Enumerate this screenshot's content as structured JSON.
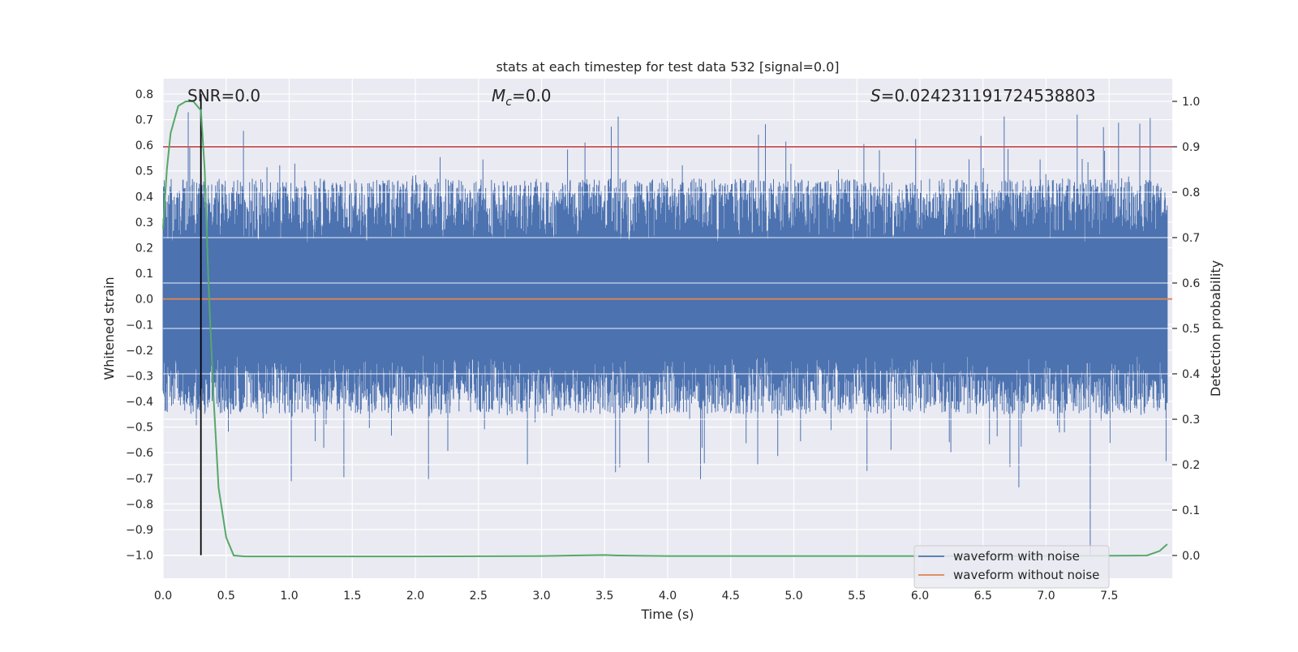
{
  "chart_data": {
    "type": "line",
    "title": "stats at each timestep for test data 532 [signal=0.0]",
    "xlabel": "Time (s)",
    "ylabel": "Whitened strain",
    "y2label": "Detection probability",
    "xlim": [
      0.0,
      8.0
    ],
    "ylim": [
      -1.09,
      0.86
    ],
    "y2lim": [
      -0.05,
      1.05
    ],
    "x_ticks": [
      0.0,
      0.5,
      1.0,
      1.5,
      2.0,
      2.5,
      3.0,
      3.5,
      4.0,
      4.5,
      5.0,
      5.5,
      6.0,
      6.5,
      7.0,
      7.5
    ],
    "x_tick_labels": [
      "0.0",
      "0.5",
      "1.0",
      "1.5",
      "2.0",
      "2.5",
      "3.0",
      "3.5",
      "4.0",
      "4.5",
      "5.0",
      "5.5",
      "6.0",
      "6.5",
      "7.0",
      "7.5"
    ],
    "y_ticks": [
      0.8,
      0.7,
      0.6,
      0.5,
      0.4,
      0.3,
      0.2,
      0.1,
      0.0,
      -0.1,
      -0.2,
      -0.3,
      -0.4,
      -0.5,
      -0.6,
      -0.7,
      -0.8,
      -0.9,
      -1.0
    ],
    "y_tick_labels": [
      "0.8",
      "0.7",
      "0.6",
      "0.5",
      "0.4",
      "0.3",
      "0.2",
      "0.1",
      "0.0",
      "−0.1",
      "−0.2",
      "−0.3",
      "−0.4",
      "−0.5",
      "−0.6",
      "−0.7",
      "−0.8",
      "−0.9",
      "−1.0"
    ],
    "y2_ticks": [
      1.0,
      0.9,
      0.8,
      0.7,
      0.6,
      0.5,
      0.4,
      0.3,
      0.2,
      0.1,
      0.0
    ],
    "y2_tick_labels": [
      "1.0",
      "0.9",
      "0.8",
      "0.7",
      "0.6",
      "0.5",
      "0.4",
      "0.3",
      "0.2",
      "0.1",
      "0.0"
    ],
    "grid": true,
    "annotations": {
      "snr": "SNR=0.0",
      "mc_symbol": "M",
      "mc_subscript": "c",
      "mc_value": "=0.0",
      "s_symbol": "S",
      "s_value": "=0.024231191724538803"
    },
    "series": [
      {
        "name": "waveform with noise",
        "color": "#4c72b0",
        "axis": "left",
        "style": "dense noise",
        "typical_range": [
          -0.45,
          0.47
        ],
        "extreme_range": [
          -1.0,
          0.77
        ]
      },
      {
        "name": "waveform without noise",
        "color": "#dd8452",
        "axis": "left",
        "x": [
          0.0,
          8.0
        ],
        "y": [
          0.0,
          0.0
        ]
      },
      {
        "name": "",
        "color": "#55a868",
        "axis": "right",
        "x": [
          0.0,
          0.03,
          0.06,
          0.12,
          0.18,
          0.24,
          0.3,
          0.33,
          0.36,
          0.4,
          0.44,
          0.5,
          0.56,
          0.65,
          1.0,
          2.0,
          3.0,
          3.5,
          3.6,
          4.0,
          5.0,
          6.0,
          7.0,
          7.8,
          7.9,
          7.96
        ],
        "y": [
          0.72,
          0.85,
          0.93,
          0.99,
          1.0,
          1.0,
          0.98,
          0.85,
          0.6,
          0.35,
          0.15,
          0.04,
          0.0,
          -0.002,
          -0.002,
          -0.002,
          -0.001,
          0.001,
          0.0,
          -0.001,
          -0.001,
          -0.001,
          -0.001,
          0.0,
          0.01,
          0.025
        ]
      }
    ],
    "threshold": {
      "value": 0.9,
      "axis": "right",
      "color": "#c44e52"
    },
    "marker": {
      "x": 0.3,
      "y_from": -1.0,
      "y_to": 0.8,
      "color": "#000000"
    },
    "legend": {
      "placement": "lower-right",
      "entries": [
        {
          "label": "waveform with noise",
          "color": "#4c72b0"
        },
        {
          "label": "waveform without noise",
          "color": "#dd8452"
        }
      ]
    },
    "colors": {
      "axes_bg": "#eaeaf2",
      "grid": "#ffffff",
      "text": "#262626"
    }
  }
}
